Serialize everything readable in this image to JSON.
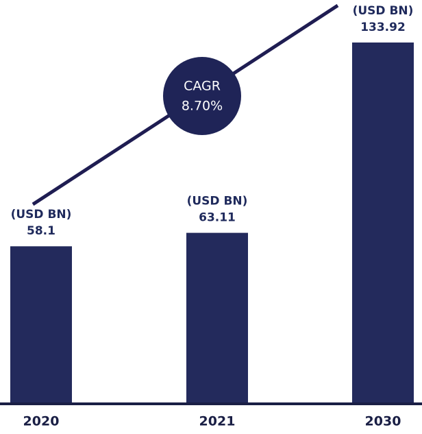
{
  "chart_data": {
    "type": "bar",
    "categories": [
      "2020",
      "2021",
      "2030"
    ],
    "values": [
      58.1,
      63.11,
      133.92
    ],
    "unit": "(USD BN)",
    "color": "#232a5c",
    "annotation": {
      "label": "CAGR",
      "value": "8.70%"
    }
  }
}
